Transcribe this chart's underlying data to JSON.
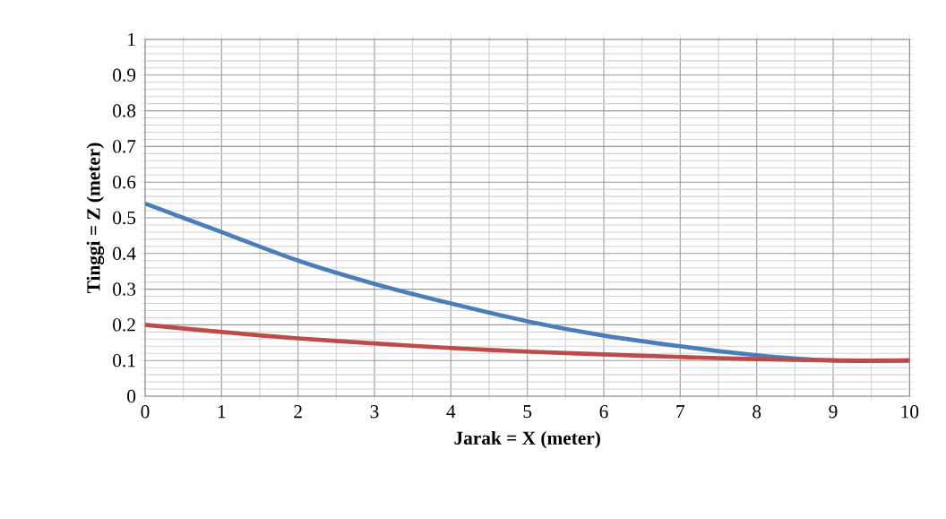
{
  "chart_data": {
    "type": "line",
    "xlabel": "Jarak = X (meter)",
    "ylabel": "Tinggi = Z (meter)",
    "x": [
      0,
      1,
      2,
      3,
      4,
      5,
      6,
      7,
      8,
      9,
      10
    ],
    "series": [
      {
        "color": "#4a7ebb",
        "values": [
          0.54,
          0.46,
          0.38,
          0.315,
          0.26,
          0.21,
          0.17,
          0.14,
          0.115,
          0.1,
          0.1
        ]
      },
      {
        "color": "#be4b48",
        "values": [
          0.2,
          0.18,
          0.162,
          0.148,
          0.135,
          0.125,
          0.117,
          0.11,
          0.104,
          0.1,
          0.1
        ]
      }
    ],
    "xlim": [
      0,
      10
    ],
    "ylim": [
      0,
      1
    ],
    "xticks": [
      0,
      1,
      2,
      3,
      4,
      5,
      6,
      7,
      8,
      9,
      10
    ],
    "yticks": [
      0,
      0.1,
      0.2,
      0.3,
      0.4,
      0.5,
      0.6,
      0.7,
      0.8,
      0.9,
      1
    ],
    "grid": true,
    "marker": "none",
    "line_style": "solid"
  }
}
